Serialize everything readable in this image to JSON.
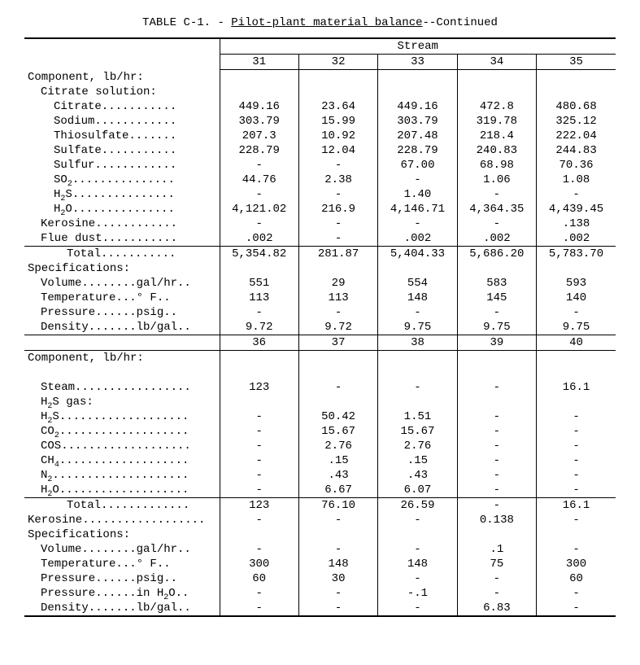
{
  "title_prefix": "TABLE C-1. - ",
  "title_underline": "Pilot-plant material balance",
  "title_suffix": "--Continued",
  "stream_header": "Stream",
  "streams_a": [
    "31",
    "32",
    "33",
    "34",
    "35"
  ],
  "streams_b": [
    "36",
    "37",
    "38",
    "39",
    "40"
  ],
  "section_a": {
    "header": "Component, lb/hr:",
    "citrate_header": "Citrate solution:",
    "rows": [
      {
        "label": "Citrate",
        "dots": true,
        "indent": 2,
        "cells": [
          "449.16",
          "23.64",
          "449.16",
          "472.8",
          "480.68"
        ]
      },
      {
        "label": "Sodium",
        "dots": true,
        "indent": 2,
        "cells": [
          "303.79",
          "15.99",
          "303.79",
          "319.78",
          "325.12"
        ]
      },
      {
        "label": "Thiosulfate",
        "dots": true,
        "indent": 2,
        "cells": [
          "207.3",
          "10.92",
          "207.48",
          "218.4",
          "222.04"
        ]
      },
      {
        "label": "Sulfate",
        "dots": true,
        "indent": 2,
        "cells": [
          "228.79",
          "12.04",
          "228.79",
          "240.83",
          "244.83"
        ]
      },
      {
        "label": "Sulfur",
        "dots": true,
        "indent": 2,
        "cells": [
          "-",
          "-",
          "67.00",
          "68.98",
          "70.36"
        ]
      },
      {
        "label_html": "SO<span class='sub'>2</span>",
        "dots": true,
        "indent": 2,
        "cells": [
          "44.76",
          "2.38",
          "-",
          "1.06",
          "1.08"
        ]
      },
      {
        "label_html": "H<span class='sub'>2</span>S",
        "dots": true,
        "indent": 2,
        "cells": [
          "-",
          "-",
          "1.40",
          "-",
          "-"
        ]
      },
      {
        "label_html": "H<span class='sub'>2</span>O",
        "dots": true,
        "indent": 2,
        "cells": [
          "4,121.02",
          "216.9",
          "4,146.71",
          "4,364.35",
          "4,439.45"
        ]
      },
      {
        "label": "Kerosine",
        "dots": true,
        "indent": 1,
        "cells": [
          "-",
          "-",
          "-",
          "-",
          ".138"
        ]
      },
      {
        "label": "Flue dust",
        "dots": true,
        "indent": 1,
        "cells": [
          ".002",
          "-",
          ".002",
          ".002",
          ".002"
        ]
      }
    ],
    "total_row": {
      "label": "Total",
      "dots": true,
      "indent": 3,
      "cells": [
        "5,354.82",
        "281.87",
        "5,404.33",
        "5,686.20",
        "5,783.70"
      ]
    },
    "spec_header": "Specifications:",
    "spec_rows": [
      {
        "label": "Volume",
        "unit": "gal/hr",
        "indent": 1,
        "cells": [
          "551",
          "29",
          "554",
          "583",
          "593"
        ]
      },
      {
        "label": "Temperature",
        "unit": "° F",
        "indent": 1,
        "cells": [
          "113",
          "113",
          "148",
          "145",
          "140"
        ]
      },
      {
        "label": "Pressure",
        "unit": "psig",
        "indent": 1,
        "cells": [
          "-",
          "-",
          "-",
          "-",
          "-"
        ]
      },
      {
        "label": "Density",
        "unit": "lb/gal",
        "indent": 1,
        "cells": [
          "9.72",
          "9.72",
          "9.75",
          "9.75",
          "9.75"
        ]
      }
    ]
  },
  "section_b": {
    "header": "Component, lb/hr:",
    "rows": [
      {
        "label": "Steam",
        "dots": true,
        "indent": 1,
        "cells": [
          "123",
          "-",
          "-",
          "-",
          "16.1"
        ]
      },
      {
        "label_html": "H<span class='sub'>2</span>S gas:",
        "dots": false,
        "indent": 1,
        "cells": [
          "",
          "",
          "",
          "",
          ""
        ]
      },
      {
        "label_html": "H<span class='sub'>2</span>S",
        "dots": true,
        "indent": 1,
        "cells": [
          "-",
          "50.42",
          "1.51",
          "-",
          "-"
        ]
      },
      {
        "label_html": "CO<span class='sub'>2</span>",
        "dots": true,
        "indent": 1,
        "cells": [
          "-",
          "15.67",
          "15.67",
          "-",
          "-"
        ]
      },
      {
        "label": "COS",
        "dots": true,
        "indent": 1,
        "cells": [
          "-",
          "2.76",
          "2.76",
          "-",
          "-"
        ]
      },
      {
        "label_html": "CH<span class='sub'>4</span>",
        "dots": true,
        "indent": 1,
        "cells": [
          "-",
          ".15",
          ".15",
          "-",
          "-"
        ]
      },
      {
        "label_html": "N<span class='sub'>2</span>",
        "dots": true,
        "indent": 1,
        "cells": [
          "-",
          ".43",
          ".43",
          "-",
          "-"
        ]
      },
      {
        "label_html": "H<span class='sub'>2</span>O",
        "dots": true,
        "indent": 1,
        "cells": [
          "-",
          "6.67",
          "6.07",
          "-",
          "-"
        ]
      }
    ],
    "total_row": {
      "label": "Total",
      "dots": true,
      "indent": 3,
      "cells": [
        "123",
        "76.10",
        "26.59",
        "-",
        "16.1"
      ]
    },
    "kerosine_row": {
      "label": "Kerosine",
      "dots": true,
      "indent": 0,
      "cells": [
        "-",
        "-",
        "-",
        "0.138",
        "-"
      ]
    },
    "spec_header": "Specifications:",
    "spec_rows": [
      {
        "label": "Volume",
        "unit": "gal/hr",
        "indent": 1,
        "cells": [
          "-",
          "-",
          "-",
          ".1",
          "-"
        ]
      },
      {
        "label": "Temperature",
        "unit": "° F",
        "indent": 1,
        "cells": [
          "300",
          "148",
          "148",
          "75",
          "300"
        ]
      },
      {
        "label": "Pressure",
        "unit": "psig",
        "indent": 1,
        "cells": [
          "60",
          "30",
          "-",
          "-",
          "60"
        ]
      },
      {
        "label_html": "Pressure",
        "unit_html": "in H<span class='sub'>2</span>O",
        "indent": 1,
        "cells": [
          "-",
          "-",
          "-.1",
          "-",
          "-"
        ]
      },
      {
        "label": "Density",
        "unit": "lb/gal",
        "indent": 1,
        "cells": [
          "-",
          "-",
          "-",
          "6.83",
          "-"
        ]
      }
    ]
  }
}
